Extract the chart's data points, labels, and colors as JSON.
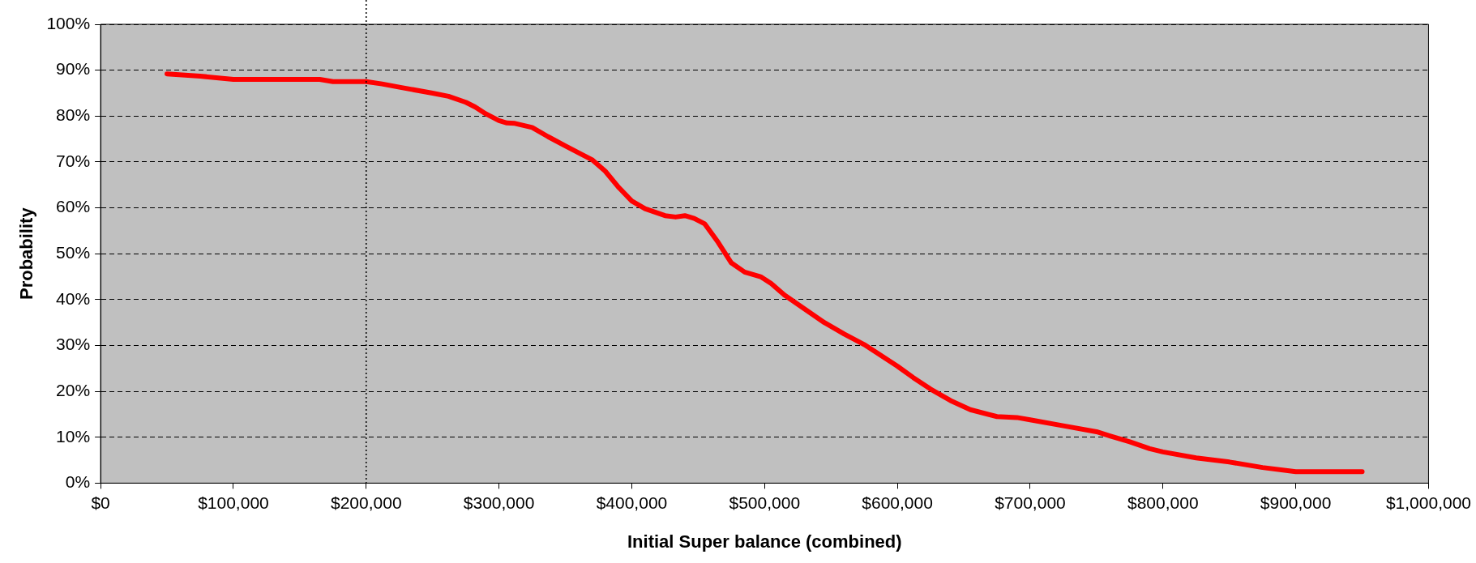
{
  "chart_data": {
    "type": "line",
    "xlabel": "Initial Super balance (combined)",
    "ylabel": "Probability",
    "x": [
      50000,
      75000,
      100000,
      125000,
      150000,
      165000,
      175000,
      200000,
      212000,
      225000,
      250000,
      262000,
      275000,
      282000,
      290000,
      300000,
      306000,
      312000,
      325000,
      337000,
      350000,
      362000,
      370000,
      380000,
      390000,
      400000,
      410000,
      425000,
      433000,
      440000,
      447000,
      455000,
      465000,
      475000,
      485000,
      497000,
      505000,
      515000,
      530000,
      545000,
      560000,
      575000,
      600000,
      612000,
      625000,
      640000,
      655000,
      675000,
      690000,
      700000,
      725000,
      750000,
      760000,
      775000,
      790000,
      800000,
      825000,
      850000,
      875000,
      900000,
      950000
    ],
    "series": [
      {
        "color": "#ff0000",
        "values": [
          89.2,
          88.7,
          88,
          88,
          88,
          88,
          87.5,
          87.5,
          87,
          86.3,
          85,
          84.3,
          83,
          82,
          80.5,
          79,
          78.5,
          78.4,
          77.5,
          75.5,
          73.5,
          71.7,
          70.5,
          68,
          64.5,
          61.5,
          59.8,
          58.3,
          58,
          58.3,
          57.7,
          56.5,
          52.5,
          48,
          46,
          45,
          43.5,
          41,
          38,
          35,
          32.5,
          30.2,
          25.5,
          23,
          20.5,
          18,
          16,
          14.5,
          14.3,
          13.8,
          12.5,
          11.2,
          10.3,
          9,
          7.5,
          6.8,
          5.5,
          4.6,
          3.4,
          2.5,
          2.5
        ]
      }
    ],
    "xlim": [
      0,
      1000000
    ],
    "xticks": [
      {
        "value": 0,
        "label": "$0"
      },
      {
        "value": 100000,
        "label": "$100,000"
      },
      {
        "value": 200000,
        "label": "$200,000"
      },
      {
        "value": 300000,
        "label": "$300,000"
      },
      {
        "value": 400000,
        "label": "$400,000"
      },
      {
        "value": 500000,
        "label": "$500,000"
      },
      {
        "value": 600000,
        "label": "$600,000"
      },
      {
        "value": 700000,
        "label": "$700,000"
      },
      {
        "value": 800000,
        "label": "$800,000"
      },
      {
        "value": 900000,
        "label": "$900,000"
      },
      {
        "value": 1000000,
        "label": "$1,000,000"
      }
    ],
    "ylim": [
      0,
      100
    ],
    "yticks": [
      {
        "value": 0,
        "label": "0%"
      },
      {
        "value": 10,
        "label": "10%"
      },
      {
        "value": 20,
        "label": "20%"
      },
      {
        "value": 30,
        "label": "30%"
      },
      {
        "value": 40,
        "label": "40%"
      },
      {
        "value": 50,
        "label": "50%"
      },
      {
        "value": 60,
        "label": "60%"
      },
      {
        "value": 70,
        "label": "70%"
      },
      {
        "value": 80,
        "label": "80%"
      },
      {
        "value": 90,
        "label": "90%"
      },
      {
        "value": 100,
        "label": "100%"
      }
    ],
    "grid": "y",
    "marker": "none",
    "line_style": "solid",
    "legend": false,
    "ref_lines": [
      {
        "axis": "x",
        "value": 200000,
        "line_style": "dotted",
        "color": "#000000"
      }
    ]
  }
}
